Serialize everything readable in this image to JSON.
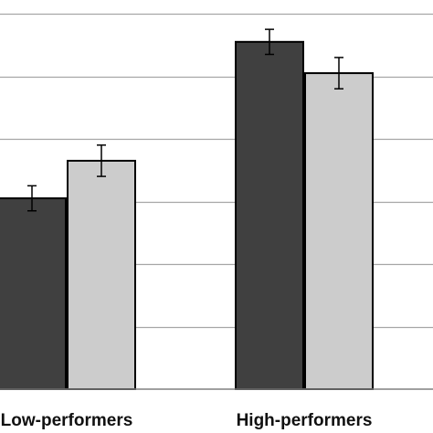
{
  "chart_data": {
    "type": "bar",
    "title": "",
    "xlabel": "",
    "ylabel": "",
    "categories": [
      "Low-performers",
      "High-performers"
    ],
    "series": [
      {
        "values": [
          30.5,
          55.5
        ],
        "errors": [
          2.0,
          2.0
        ],
        "color": "#404040"
      },
      {
        "values": [
          36.5,
          50.5
        ],
        "errors": [
          2.5,
          2.5
        ],
        "color": "#cccccc"
      }
    ],
    "ylim": [
      0,
      60
    ],
    "ytick_step": 10,
    "grid": true,
    "legend": "none"
  }
}
